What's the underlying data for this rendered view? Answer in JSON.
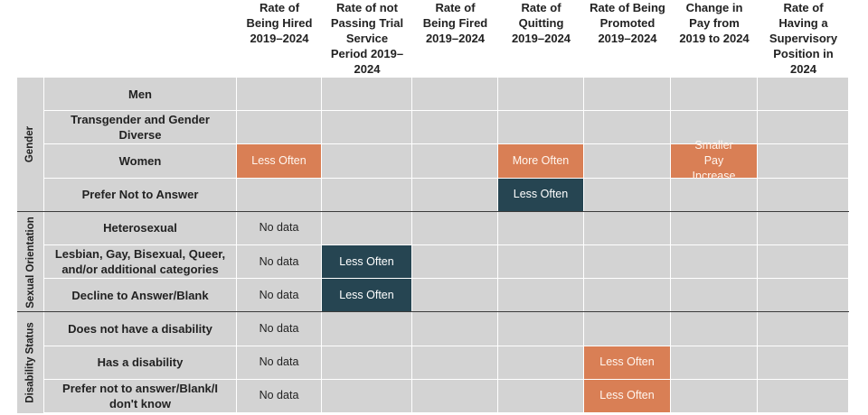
{
  "chart_data": {
    "type": "table",
    "columns": [
      "Rate of Being Hired 2019–2024",
      "Rate of not Passing Trial Service Period 2019–2024",
      "Rate of Being Fired 2019–2024",
      "Rate of Quitting 2019–2024",
      "Rate of Being Promoted 2019–2024",
      "Change in Pay from 2019 to 2024",
      "Rate of Having a Supervisory Position in 2024"
    ],
    "groups": [
      {
        "name": "Gender",
        "rows": [
          {
            "label": "Men",
            "cells": [
              "",
              "",
              "",
              "",
              "",
              "",
              ""
            ]
          },
          {
            "label": "Transgender and Gender Diverse",
            "cells": [
              "",
              "",
              "",
              "",
              "",
              "",
              ""
            ]
          },
          {
            "label": "Women",
            "cells": [
              "Less Often",
              "",
              "",
              "More Often",
              "",
              "Smaller Pay Increase",
              ""
            ]
          },
          {
            "label": "Prefer Not to Answer",
            "cells": [
              "",
              "",
              "",
              "Less Often",
              "",
              "",
              ""
            ]
          }
        ]
      },
      {
        "name": "Sexual Orientation",
        "rows": [
          {
            "label": "Heterosexual",
            "cells": [
              "No data",
              "",
              "",
              "",
              "",
              "",
              ""
            ]
          },
          {
            "label": "Lesbian, Gay, Bisexual, Queer, and/or additional categories",
            "cells": [
              "No data",
              "Less Often",
              "",
              "",
              "",
              "",
              ""
            ]
          },
          {
            "label": "Decline to Answer/Blank",
            "cells": [
              "No data",
              "Less Often",
              "",
              "",
              "",
              "",
              ""
            ]
          }
        ]
      },
      {
        "name": "Disability Status",
        "rows": [
          {
            "label": "Does not have a disability",
            "cells": [
              "No data",
              "",
              "",
              "",
              "",
              "",
              ""
            ]
          },
          {
            "label": "Has a disability",
            "cells": [
              "No data",
              "",
              "",
              "",
              "Less Often",
              "",
              ""
            ]
          },
          {
            "label": "Prefer not to answer/Blank/I don't know",
            "cells": [
              "No data",
              "",
              "",
              "",
              "Less Often",
              "",
              ""
            ]
          }
        ]
      }
    ],
    "colors": {
      "More Often": "#d97f55",
      "Smaller Pay Increase": "#d97f55",
      "Less Often (orange)": "#d97f55",
      "Less Often (teal)": "#264552",
      "neutral": "#d3d3d3"
    },
    "cell_styles": {
      "0-2-0": "orange",
      "0-2-3": "orange",
      "0-2-5": "orange",
      "0-3-3": "teal",
      "1-1-1": "teal",
      "1-2-1": "teal",
      "2-1-4": "orange",
      "2-2-4": "orange"
    }
  }
}
